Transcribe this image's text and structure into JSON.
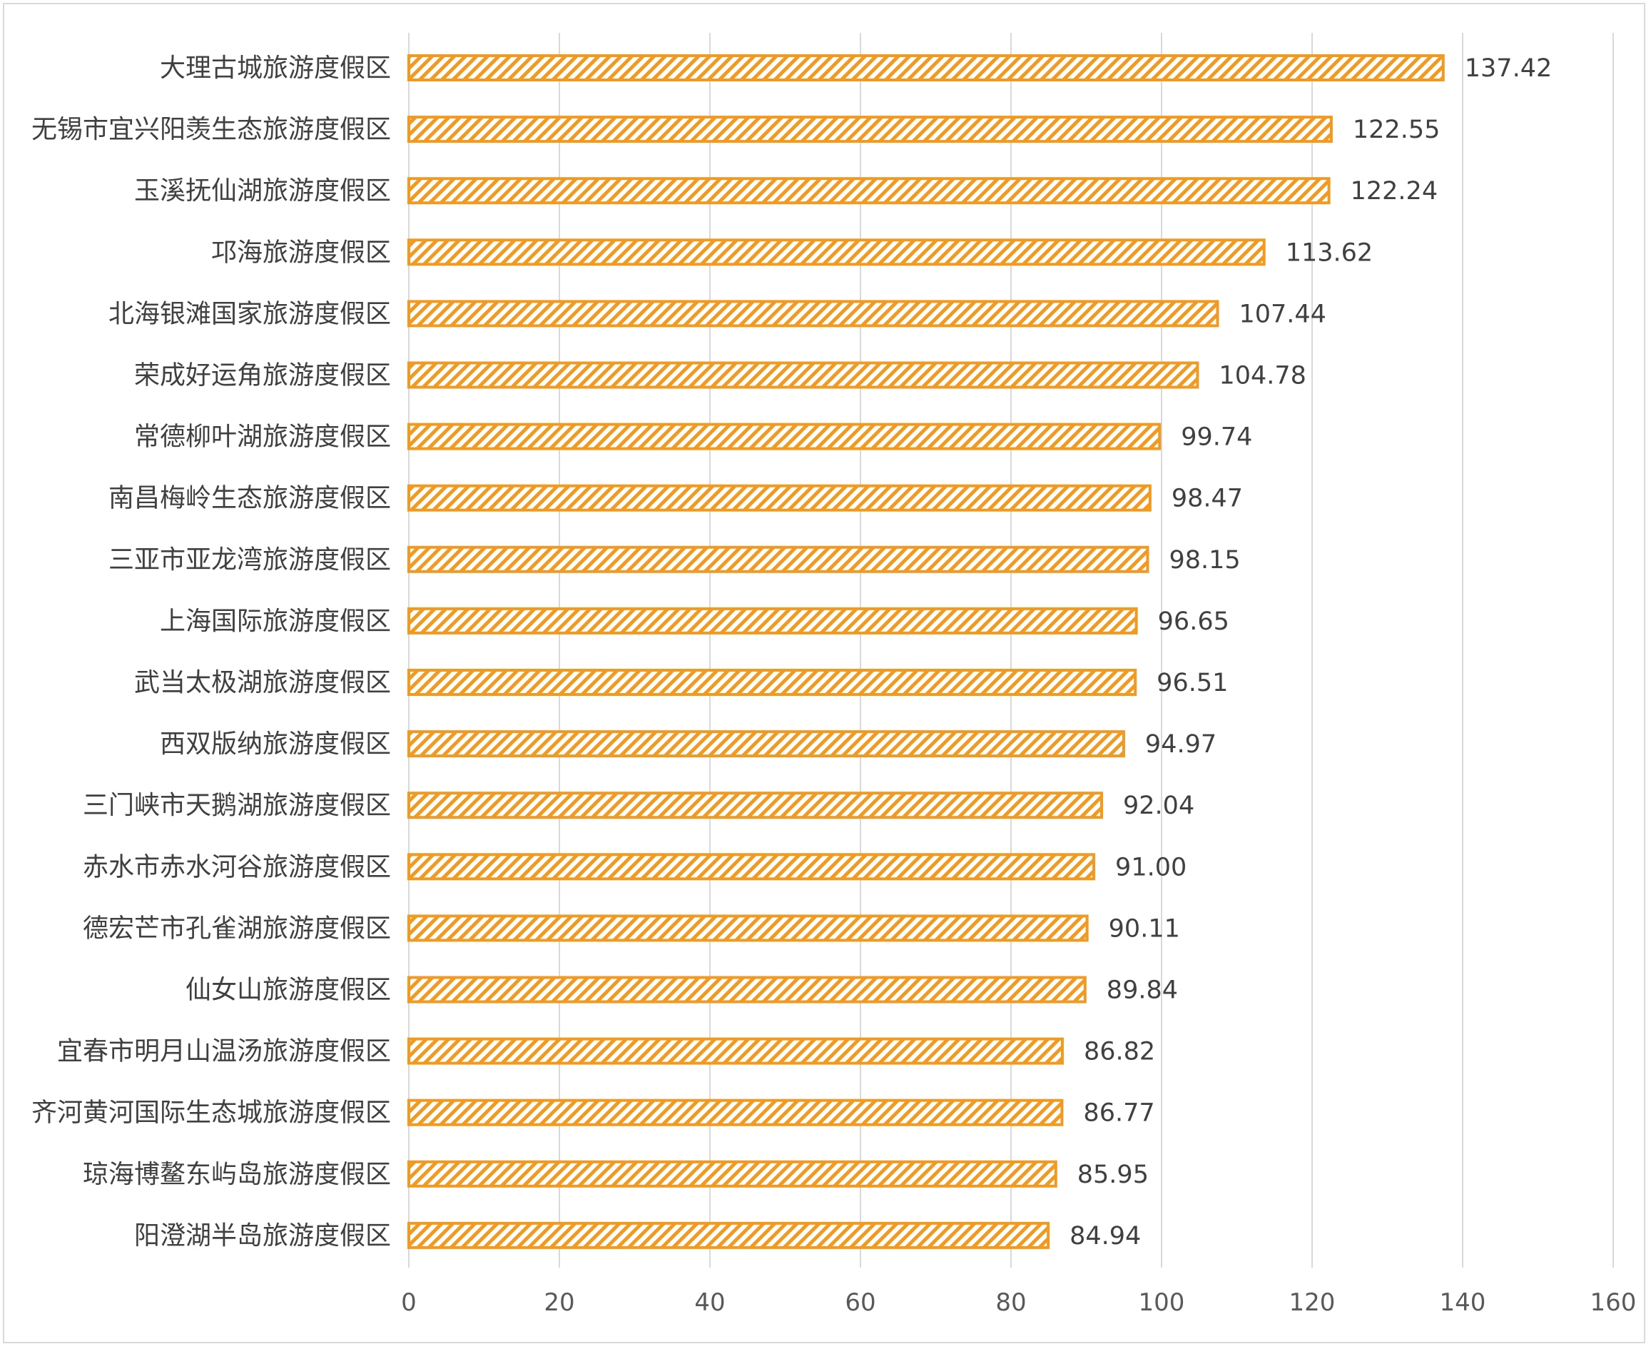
{
  "chart_data": {
    "type": "bar",
    "orientation": "horizontal",
    "title": "",
    "xlabel": "",
    "ylabel": "",
    "categories": [
      "大理古城旅游度假区",
      "无锡市宜兴阳羡生态旅游度假区",
      "玉溪抚仙湖旅游度假区",
      "邛海旅游度假区",
      "北海银滩国家旅游度假区",
      "荣成好运角旅游度假区",
      "常德柳叶湖旅游度假区",
      "南昌梅岭生态旅游度假区",
      "三亚市亚龙湾旅游度假区",
      "上海国际旅游度假区",
      "武当太极湖旅游度假区",
      "西双版纳旅游度假区",
      "三门峡市天鹅湖旅游度假区",
      "赤水市赤水河谷旅游度假区",
      "德宏芒市孔雀湖旅游度假区",
      "仙女山旅游度假区",
      "宜春市明月山温汤旅游度假区",
      "齐河黄河国际生态城旅游度假区",
      "琼海博鳌东屿岛旅游度假区",
      "阳澄湖半岛旅游度假区"
    ],
    "values": [
      137.42,
      122.55,
      122.24,
      113.62,
      107.44,
      104.78,
      99.74,
      98.47,
      98.15,
      96.65,
      96.51,
      94.97,
      92.04,
      91.0,
      90.11,
      89.84,
      86.82,
      86.77,
      85.95,
      84.94
    ],
    "value_labels": [
      "137.42",
      "122.55",
      "122.24",
      "113.62",
      "107.44",
      "104.78",
      "99.74",
      "98.47",
      "98.15",
      "96.65",
      "96.51",
      "94.97",
      "92.04",
      "91.00",
      "90.11",
      "89.84",
      "86.82",
      "86.77",
      "85.95",
      "84.94"
    ],
    "xlim": [
      0,
      160
    ],
    "xticks": [
      "0",
      "20",
      "40",
      "60",
      "80",
      "100",
      "120",
      "140",
      "160"
    ],
    "grid": "vertical",
    "legend": "none",
    "bar_color": "#f29a1f",
    "bar_pattern": "diagonal-hatch"
  }
}
